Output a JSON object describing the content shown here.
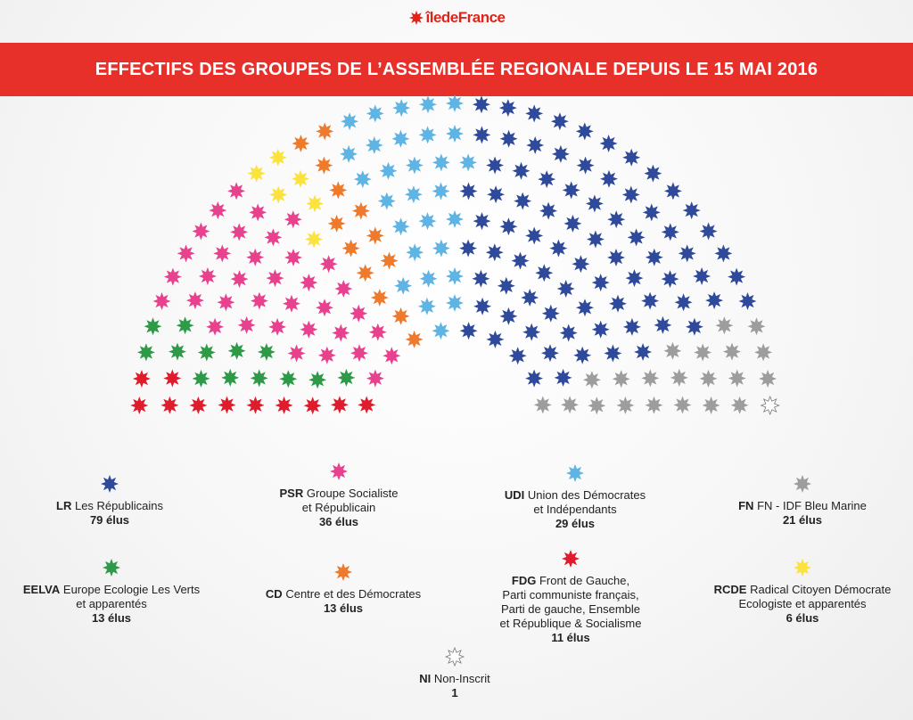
{
  "logo": {
    "text": "îledeFrance",
    "color": "#e2231a"
  },
  "title": "EFFECTIFS DES GROUPES DE L’ASSEMBLÉE REGIONALE DEPUIS LE 15 MAI 2016",
  "chart_data": {
    "type": "parliament",
    "total_seats": 209,
    "groups": [
      {
        "id": "LR",
        "abbr": "LR",
        "name": "Les Républicains",
        "count_label": "79 élus",
        "seats": 79,
        "color": "#2f4a9b"
      },
      {
        "id": "PSR",
        "abbr": "PSR",
        "name": "Groupe Socialiste\net Républicain",
        "count_label": "36 élus",
        "seats": 36,
        "color": "#e8418e"
      },
      {
        "id": "UDI",
        "abbr": "UDI",
        "name": " Union des Démocrates\net Indépendants",
        "count_label": "29 élus",
        "seats": 29,
        "color": "#5fb4e3"
      },
      {
        "id": "FN",
        "abbr": "FN",
        "name": "FN - IDF Bleu Marine",
        "count_label": "21 élus",
        "seats": 21,
        "color": "#9d9d9d"
      },
      {
        "id": "EELVA",
        "abbr": "EELVA",
        "name": "Europe Ecologie Les Verts\net apparentés",
        "count_label": "13 élus",
        "seats": 13,
        "color": "#2e9a48"
      },
      {
        "id": "CD",
        "abbr": "CD",
        "name": "Centre et des Démocrates",
        "count_label": "13 élus",
        "seats": 13,
        "color": "#ee7a2d"
      },
      {
        "id": "FDG",
        "abbr": "FDG",
        "name": "Front de Gauche,\nParti communiste français,\nParti de gauche, Ensemble\net République & Socialisme",
        "count_label": "11 élus",
        "seats": 11,
        "color": "#e01b2b"
      },
      {
        "id": "RCDE",
        "abbr": "RCDE",
        "name": "Radical Citoyen Démocrate\nEcologiste et apparentés",
        "count_label": "6 élus",
        "seats": 6,
        "color": "#fbe23d"
      },
      {
        "id": "NI",
        "abbr": "NI",
        "name": "Non-Inscrit",
        "count_label": "1",
        "seats": 1,
        "color": "#ffffff"
      }
    ],
    "seat_order_left_to_right": [
      "FDG",
      "EELVA",
      "PSR",
      "RCDE",
      "CD",
      "UDI",
      "LR",
      "FN",
      "NI"
    ]
  }
}
